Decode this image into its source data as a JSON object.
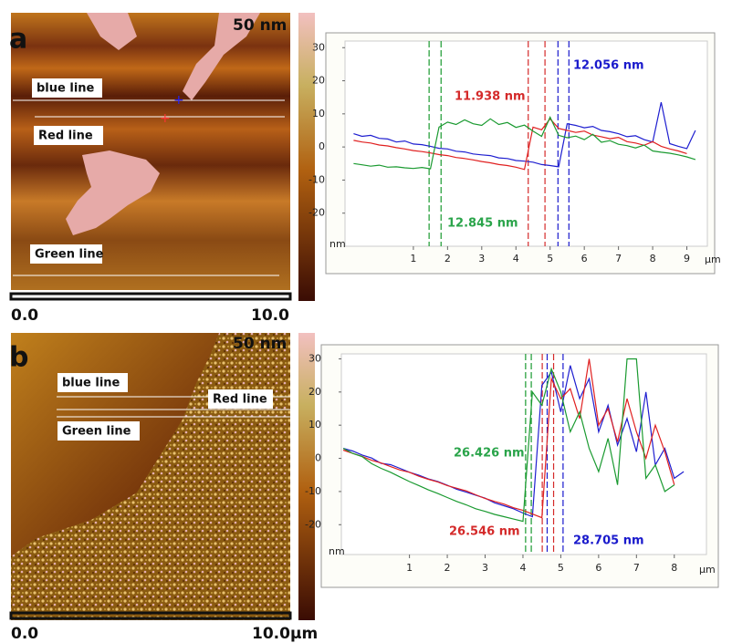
{
  "panels": [
    {
      "label": "a",
      "scale_max": "50 nm",
      "line_labels": [
        "blue line",
        "Red line",
        "Green line"
      ],
      "scale_start": "0.0",
      "scale_end": "10.0"
    },
    {
      "label": "b",
      "scale_max": "50 nm",
      "line_labels": [
        "blue line",
        "Red line",
        "Green line"
      ],
      "scale_start": "0.0",
      "scale_end": "10.0µm"
    }
  ],
  "chart_data": [
    {
      "type": "line",
      "x_label": "µm",
      "y_label": "nm",
      "x": [
        -0.75,
        -0.5,
        -0.25,
        0,
        0.25,
        0.5,
        0.75,
        1,
        1.25,
        1.5,
        1.75,
        2,
        2.25,
        2.5,
        2.75,
        3,
        3.25,
        3.5,
        3.75,
        4,
        4.25,
        4.5,
        4.75,
        5,
        5.25,
        5.5,
        5.75,
        6,
        6.25,
        6.5,
        6.75,
        7,
        7.25,
        7.5,
        7.75,
        8,
        8.25,
        8.5,
        8.75,
        9,
        9.25
      ],
      "xlim": [
        -1,
        9.6
      ],
      "xticks": [
        1,
        2,
        3,
        4,
        5,
        6,
        7,
        8,
        9
      ],
      "ylim": [
        -30,
        32
      ],
      "yticks": [
        -20,
        -10,
        0,
        10,
        20,
        30
      ],
      "series": [
        {
          "name": "blue line",
          "color": "#1f1fd0",
          "values": [
            4,
            3.2,
            3.5,
            2.6,
            2.4,
            1.5,
            1.8,
            0.9,
            0.7,
            0.2,
            -0.4,
            -0.6,
            -1.3,
            -1.5,
            -2.1,
            -2.4,
            -2.6,
            -3.3,
            -3.5,
            -4.1,
            -4.3,
            -4.6,
            -5.3,
            -5.6,
            -6,
            7,
            6.5,
            5.8,
            6.2,
            5,
            4.6,
            4,
            3.1,
            3.4,
            2.2,
            1.5,
            13.5,
            1,
            0.2,
            -0.5,
            5
          ]
        },
        {
          "name": "Red line",
          "color": "#e02020",
          "values": [
            2,
            1.5,
            1.2,
            0.6,
            0.3,
            -0.2,
            -0.6,
            -1.1,
            -1.4,
            -1.8,
            -2.3,
            -2.6,
            -3.2,
            -3.5,
            -3.9,
            -4.4,
            -4.8,
            -5.3,
            -5.6,
            -6.1,
            -6.8,
            6,
            5.2,
            8.5,
            5.6,
            5,
            4.4,
            4.8,
            3.6,
            3.1,
            2.5,
            2.9,
            1.6,
            1.2,
            0.5,
            1.6,
            0.2,
            -0.6,
            -1.2,
            -2,
            null
          ]
        },
        {
          "name": "Green line",
          "color": "#1a9a30",
          "values": [
            -5,
            -5.4,
            -5.8,
            -5.5,
            -6.1,
            -6,
            -6.3,
            -6.5,
            -6.2,
            -6.6,
            6,
            7.5,
            6.8,
            8.2,
            7,
            6.5,
            8.5,
            6.8,
            7.4,
            5.9,
            6.6,
            4.8,
            3.2,
            9,
            3.5,
            2.8,
            3.3,
            2.2,
            3.8,
            1.4,
            1.9,
            0.8,
            0.4,
            -0.3,
            0.6,
            -1.2,
            -1.6,
            -1.9,
            -2.4,
            -3,
            -3.8
          ]
        }
      ],
      "markers": [
        {
          "x": 1.46,
          "color": "#1a9a30"
        },
        {
          "x": 1.81,
          "color": "#1a9a30"
        },
        {
          "x": 4.36,
          "color": "#d42a2a"
        },
        {
          "x": 4.85,
          "color": "#d42a2a"
        },
        {
          "x": 5.23,
          "color": "#1a1acc"
        },
        {
          "x": 5.55,
          "color": "#1a1acc"
        }
      ],
      "annotations": [
        {
          "text": "12.056 nm",
          "color": "#1a1acc"
        },
        {
          "text": "11.938 nm",
          "color": "#d42a2a"
        },
        {
          "text": "12.845 nm",
          "color": "#2aa44a"
        }
      ]
    },
    {
      "type": "line",
      "x_label": "µm",
      "y_label": "nm",
      "x": [
        -0.75,
        -0.5,
        -0.25,
        0,
        0.25,
        0.5,
        0.75,
        1,
        1.25,
        1.5,
        1.75,
        2,
        2.25,
        2.5,
        2.75,
        3,
        3.25,
        3.5,
        3.75,
        4,
        4.25,
        4.5,
        4.75,
        5,
        5.25,
        5.5,
        5.75,
        6,
        6.25,
        6.5,
        6.75,
        7,
        7.25,
        7.5,
        7.75,
        8,
        8.25
      ],
      "xlim": [
        -0.8,
        8.85
      ],
      "xticks": [
        1,
        2,
        3,
        4,
        5,
        6,
        7,
        8
      ],
      "ylim": [
        -29,
        31.5
      ],
      "yticks": [
        -20,
        -10,
        0,
        10,
        20,
        30
      ],
      "series": [
        {
          "name": "blue line",
          "color": "#1f1fd0",
          "values": [
            3,
            2.2,
            1,
            0.1,
            -1.5,
            -1.9,
            -3,
            -4.2,
            -5.1,
            -6.2,
            -7,
            -8.1,
            -9.3,
            -10.2,
            -11.1,
            -12,
            -13.4,
            -14.3,
            -15.2,
            -16.5,
            -17.6,
            22,
            26,
            14,
            28,
            18,
            24,
            8,
            16,
            4,
            12,
            2,
            20,
            -2,
            3,
            -6,
            -4
          ]
        },
        {
          "name": "Red line",
          "color": "#e02020",
          "values": [
            2.5,
            1.5,
            0.6,
            -0.6,
            -1.4,
            -2.5,
            -3.5,
            -4.2,
            -5.4,
            -6.3,
            -7.1,
            -8.2,
            -9,
            -9.8,
            -11,
            -12.1,
            -13,
            -13.8,
            -14.9,
            -15.7,
            -16.8,
            -17.9,
            24,
            18,
            21,
            12,
            30,
            10,
            15,
            5,
            18,
            8,
            0,
            10,
            2,
            -8,
            null
          ]
        },
        {
          "name": "Green line",
          "color": "#1a9a30",
          "values": [
            3,
            1.5,
            0.5,
            -1.6,
            -3,
            -4.2,
            -5.6,
            -7,
            -8.2,
            -9.5,
            -10.6,
            -11.8,
            -13,
            -14,
            -15.2,
            -16,
            -16.9,
            -17.6,
            -18.3,
            -19,
            20,
            16,
            27,
            20,
            8,
            14,
            3,
            -4,
            6,
            -8,
            30,
            30,
            -6,
            -2,
            -10,
            -8,
            null
          ]
        }
      ],
      "markers": [
        {
          "x": 4.07,
          "color": "#1a9a30"
        },
        {
          "x": 4.22,
          "color": "#1a9a30"
        },
        {
          "x": 4.51,
          "color": "#d42a2a"
        },
        {
          "x": 4.81,
          "color": "#d42a2a"
        },
        {
          "x": 4.64,
          "color": "#1a1acc"
        },
        {
          "x": 5.06,
          "color": "#1a1acc"
        }
      ],
      "annotations": [
        {
          "text": "26.426 nm",
          "color": "#2aa44a"
        },
        {
          "text": "26.546 nm",
          "color": "#d42a2a"
        },
        {
          "text": "28.705 nm",
          "color": "#1a1acc"
        }
      ]
    }
  ]
}
